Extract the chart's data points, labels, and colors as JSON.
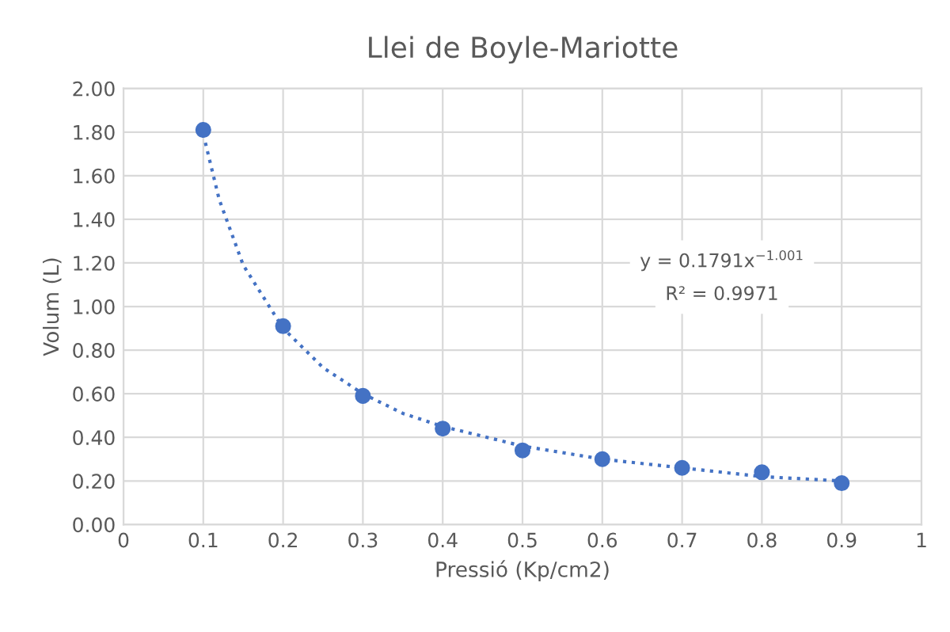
{
  "chart_data": {
    "type": "scatter",
    "title": "Llei de Boyle-Mariotte",
    "xlabel": "Pressió (Kp/cm2)",
    "ylabel": "Volum (L)",
    "series": [
      {
        "color": "#4472c4",
        "marker": "circle",
        "x": [
          0.1,
          0.2,
          0.3,
          0.4,
          0.5,
          0.6,
          0.7,
          0.8,
          0.9
        ],
        "values": [
          1.81,
          0.91,
          0.59,
          0.44,
          0.34,
          0.3,
          0.26,
          0.24,
          0.19
        ]
      },
      {
        "type": "line",
        "color": "#4472c4",
        "line_style": "dotted",
        "x": [
          0.1,
          0.12,
          0.15,
          0.2,
          0.25,
          0.3,
          0.35,
          0.4,
          0.5,
          0.6,
          0.7,
          0.8,
          0.9
        ],
        "values": [
          1.79,
          1.49,
          1.19,
          0.9,
          0.72,
          0.6,
          0.51,
          0.45,
          0.36,
          0.3,
          0.26,
          0.22,
          0.2
        ]
      }
    ],
    "annotations": [
      "y = 0.1791x$^{−1.001}$",
      "R² = 0.9971"
    ],
    "xlim": [
      0,
      1
    ],
    "xticks": [
      0,
      0.1,
      0.2,
      0.3,
      0.4,
      0.5,
      0.6,
      0.7,
      0.8,
      0.9,
      1
    ],
    "ylim": [
      0,
      2
    ],
    "yticks": [
      {
        "value": 0,
        "label": "0.00"
      },
      {
        "value": 0.2,
        "label": "0.20"
      },
      {
        "value": 0.4,
        "label": "0.40"
      },
      {
        "value": 0.6,
        "label": "0.60"
      },
      {
        "value": 0.8,
        "label": "0.80"
      },
      {
        "value": 1,
        "label": "1.00"
      },
      {
        "value": 1.2,
        "label": "1.20"
      },
      {
        "value": 1.4,
        "label": "1.40"
      },
      {
        "value": 1.6,
        "label": "1.60"
      },
      {
        "value": 1.8,
        "label": "1.80"
      },
      {
        "value": 2,
        "label": "2.00"
      }
    ],
    "grid": true,
    "legend": false
  }
}
